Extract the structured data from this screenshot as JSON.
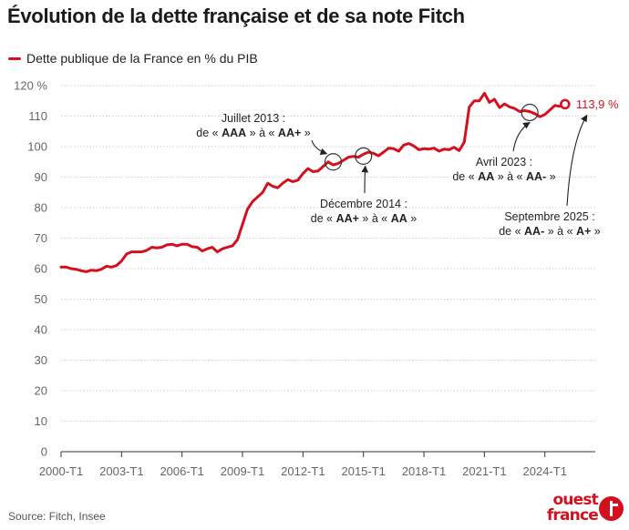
{
  "header": {
    "title": "Évolution de la dette française et de sa note Fitch"
  },
  "legend": {
    "label": "Dette publique de la France en % du PIB",
    "color": "#d5101e"
  },
  "footer": {
    "source": "Source: Fitch, Insee",
    "logo_text_line1": "ouest",
    "logo_text_line2": "france"
  },
  "chart_data": {
    "type": "line",
    "ylim": [
      0,
      120
    ],
    "yticks": [
      0,
      10,
      20,
      30,
      40,
      50,
      60,
      70,
      80,
      90,
      100,
      110,
      120
    ],
    "ytick_labels": [
      "0",
      "10",
      "20",
      "30",
      "40",
      "50",
      "60",
      "70",
      "80",
      "90",
      "100",
      "110",
      "120 %"
    ],
    "xticks": [
      2000,
      2003,
      2006,
      2009,
      2012,
      2015,
      2018,
      2021,
      2024
    ],
    "xtick_labels": [
      "2000-T1",
      "2003-T1",
      "2006-T1",
      "2009-T1",
      "2012-T1",
      "2015-T1",
      "2018-T1",
      "2021-T1",
      "2024-T1"
    ],
    "grid": "horizontal",
    "series": [
      {
        "name": "Dette publique de la France en % du PIB",
        "color": "#d5101e",
        "points": [
          [
            2000.0,
            60.5
          ],
          [
            2000.25,
            60.5
          ],
          [
            2000.5,
            60.0
          ],
          [
            2000.75,
            59.8
          ],
          [
            2001.0,
            59.3
          ],
          [
            2001.25,
            59.0
          ],
          [
            2001.5,
            59.5
          ],
          [
            2001.75,
            59.3
          ],
          [
            2002.0,
            59.8
          ],
          [
            2002.25,
            60.8
          ],
          [
            2002.5,
            60.5
          ],
          [
            2002.75,
            61.0
          ],
          [
            2003.0,
            62.5
          ],
          [
            2003.25,
            64.8
          ],
          [
            2003.5,
            65.5
          ],
          [
            2003.75,
            65.5
          ],
          [
            2004.0,
            65.5
          ],
          [
            2004.25,
            66.0
          ],
          [
            2004.5,
            67.0
          ],
          [
            2004.75,
            66.8
          ],
          [
            2005.0,
            67.0
          ],
          [
            2005.25,
            67.8
          ],
          [
            2005.5,
            68.0
          ],
          [
            2005.75,
            67.5
          ],
          [
            2006.0,
            68.0
          ],
          [
            2006.25,
            68.0
          ],
          [
            2006.5,
            67.2
          ],
          [
            2006.75,
            67.0
          ],
          [
            2007.0,
            65.8
          ],
          [
            2007.25,
            66.5
          ],
          [
            2007.5,
            67.0
          ],
          [
            2007.75,
            65.5
          ],
          [
            2008.0,
            66.5
          ],
          [
            2008.25,
            67.0
          ],
          [
            2008.5,
            67.5
          ],
          [
            2008.75,
            69.5
          ],
          [
            2009.0,
            74.5
          ],
          [
            2009.25,
            79.5
          ],
          [
            2009.5,
            82.0
          ],
          [
            2009.75,
            83.5
          ],
          [
            2010.0,
            85.0
          ],
          [
            2010.25,
            88.0
          ],
          [
            2010.5,
            87.0
          ],
          [
            2010.75,
            86.5
          ],
          [
            2011.0,
            88.0
          ],
          [
            2011.25,
            89.2
          ],
          [
            2011.5,
            88.5
          ],
          [
            2011.75,
            89.0
          ],
          [
            2012.0,
            91.2
          ],
          [
            2012.25,
            92.8
          ],
          [
            2012.5,
            91.8
          ],
          [
            2012.75,
            92.0
          ],
          [
            2013.0,
            93.5
          ],
          [
            2013.25,
            95.0
          ],
          [
            2013.5,
            94.0
          ],
          [
            2013.75,
            94.5
          ],
          [
            2014.0,
            95.5
          ],
          [
            2014.25,
            96.5
          ],
          [
            2014.5,
            96.8
          ],
          [
            2014.75,
            96.5
          ],
          [
            2015.0,
            97.5
          ],
          [
            2015.25,
            98.2
          ],
          [
            2015.5,
            97.8
          ],
          [
            2015.75,
            97.0
          ],
          [
            2016.0,
            98.2
          ],
          [
            2016.25,
            99.5
          ],
          [
            2016.5,
            99.3
          ],
          [
            2016.75,
            98.5
          ],
          [
            2017.0,
            100.5
          ],
          [
            2017.25,
            101.0
          ],
          [
            2017.5,
            100.2
          ],
          [
            2017.75,
            99.0
          ],
          [
            2018.0,
            99.3
          ],
          [
            2018.25,
            99.2
          ],
          [
            2018.5,
            99.5
          ],
          [
            2018.75,
            98.5
          ],
          [
            2019.0,
            99.2
          ],
          [
            2019.25,
            99.0
          ],
          [
            2019.5,
            99.8
          ],
          [
            2019.75,
            98.7
          ],
          [
            2020.0,
            101.5
          ],
          [
            2020.25,
            113.0
          ],
          [
            2020.5,
            115.0
          ],
          [
            2020.75,
            115.0
          ],
          [
            2021.0,
            117.5
          ],
          [
            2021.25,
            114.5
          ],
          [
            2021.5,
            115.5
          ],
          [
            2021.75,
            112.8
          ],
          [
            2022.0,
            114.0
          ],
          [
            2022.25,
            113.0
          ],
          [
            2022.5,
            112.5
          ],
          [
            2022.75,
            111.5
          ],
          [
            2023.0,
            111.8
          ],
          [
            2023.25,
            111.5
          ],
          [
            2023.5,
            110.8
          ],
          [
            2023.75,
            109.8
          ],
          [
            2024.0,
            110.5
          ],
          [
            2024.25,
            112.0
          ],
          [
            2024.5,
            113.5
          ],
          [
            2024.75,
            113.2
          ],
          [
            2025.0,
            113.9
          ]
        ]
      }
    ],
    "end_value_label": "113,9 %",
    "annotations": [
      {
        "line1": "Juillet 2013 :",
        "prefix": "de « ",
        "from": "AAA",
        "mid": " » à « ",
        "to": "AA+",
        "suffix": " »",
        "x": 2013.5,
        "y": 95.0
      },
      {
        "line1": "Décembre 2014 :",
        "prefix": "de « ",
        "from": "AA+",
        "mid": " » à « ",
        "to": "AA",
        "suffix": " »",
        "x": 2015.0,
        "y": 96.9
      },
      {
        "line1": "Avril 2023 :",
        "prefix": "de « ",
        "from": "AA",
        "mid": " » à « ",
        "to": "AA-",
        "suffix": " »",
        "x": 2023.25,
        "y": 111.2
      },
      {
        "line1": "Septembre 2025 :",
        "prefix": "de « ",
        "from": "AA-",
        "mid": " » à « ",
        "to": "A+",
        "suffix": " »",
        "x": 2025.0,
        "y": 113.9
      }
    ]
  }
}
